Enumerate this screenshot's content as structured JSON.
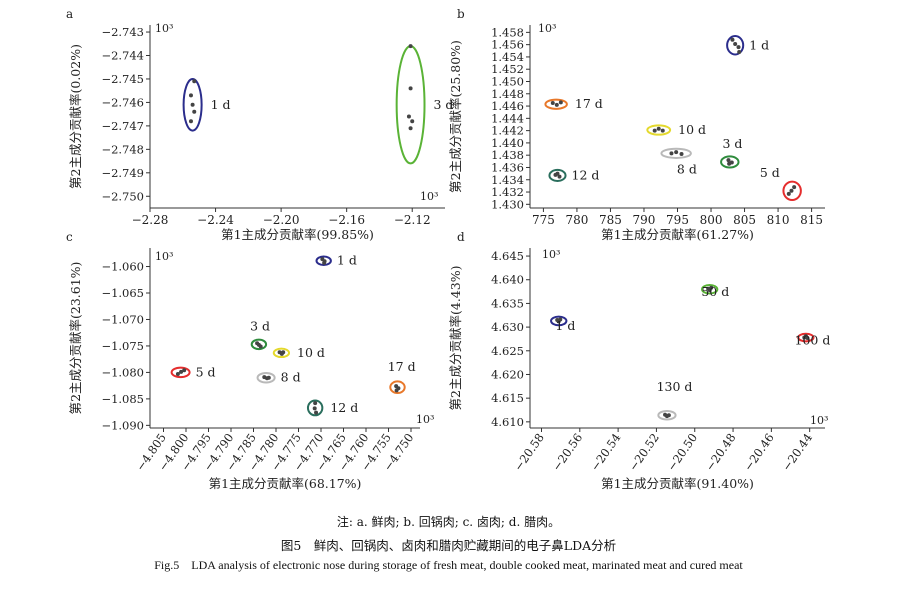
{
  "chart_data": [
    {
      "type": "scatter",
      "panel": "a",
      "xlabel": "第1主成分贡献率(99.85%)",
      "ylabel": "第2主成分贡献率(0.02%)",
      "scale_label": "10³",
      "scale_label_2": "10³",
      "xlim": [
        -2.28,
        -2.1
      ],
      "ylim": [
        -2.7505,
        -2.7427
      ],
      "xticks": [
        -2.28,
        -2.24,
        -2.2,
        -2.16,
        -2.12
      ],
      "xtick_labels": [
        "−2.28",
        "−2.24",
        "−2.20",
        "−2.16",
        "−2.12"
      ],
      "yticks": [
        -2.743,
        -2.744,
        -2.745,
        -2.746,
        -2.747,
        -2.748,
        -2.749,
        -2.75
      ],
      "ytick_labels": [
        "−2.743",
        "−2.744",
        "−2.745",
        "−2.746",
        "−2.747",
        "−2.748",
        "−2.749",
        "−2.750"
      ],
      "grid": false,
      "groups": [
        {
          "label": "1 d",
          "color": "#2b2d8c",
          "center": [
            -2.254,
            -2.7461
          ],
          "rx": 0.0055,
          "ry": 0.0011,
          "points": [
            [
              -2.253,
              -2.7451
            ],
            [
              -2.255,
              -2.7457
            ],
            [
              -2.254,
              -2.7461
            ],
            [
              -2.253,
              -2.7464
            ],
            [
              -2.255,
              -2.7468
            ]
          ]
        },
        {
          "label": "3 d",
          "color": "#5ab336",
          "center": [
            -2.121,
            -2.7461
          ],
          "rx": 0.0085,
          "ry": 0.0025,
          "points": [
            [
              -2.121,
              -2.7436
            ],
            [
              -2.121,
              -2.7454
            ],
            [
              -2.122,
              -2.7466
            ],
            [
              -2.12,
              -2.7468
            ],
            [
              -2.121,
              -2.7471
            ]
          ]
        }
      ]
    },
    {
      "type": "scatter",
      "panel": "b",
      "xlabel": "第1主成分贡献率(61.27%)",
      "ylabel": "第2主成分贡献率(25.80%)",
      "scale_label": "10³",
      "xlim": [
        773,
        817
      ],
      "ylim": [
        1.4294,
        1.4592
      ],
      "xticks": [
        775,
        780,
        785,
        790,
        795,
        800,
        805,
        810,
        815
      ],
      "xtick_labels": [
        "775",
        "780",
        "785",
        "790",
        "795",
        "800",
        "805",
        "810",
        "815"
      ],
      "yticks": [
        1.43,
        1.432,
        1.434,
        1.436,
        1.438,
        1.44,
        1.442,
        1.444,
        1.446,
        1.448,
        1.45,
        1.452,
        1.454,
        1.456,
        1.458
      ],
      "ytick_labels": [
        "1.430",
        "1.432",
        "1.434",
        "1.436",
        "1.438",
        "1.440",
        "1.442",
        "1.444",
        "1.446",
        "1.448",
        "1.450",
        "1.452",
        "1.454",
        "1.456",
        "1.458"
      ],
      "grid": false,
      "groups": [
        {
          "label": "1 d",
          "color": "#2b2d8c",
          "center": [
            803.6,
            1.4559
          ],
          "rx": 1.2,
          "ry": 0.0015,
          "points": [
            [
              803.2,
              1.4568
            ],
            [
              803.6,
              1.4561
            ],
            [
              804.1,
              1.4556
            ],
            [
              804.2,
              1.4548
            ]
          ]
        },
        {
          "label": "17 d",
          "color": "#e8782a",
          "center": [
            776.9,
            1.4463
          ],
          "rx": 1.6,
          "ry": 0.00075,
          "points": [
            [
              776.4,
              1.4465
            ],
            [
              777.0,
              1.4462
            ],
            [
              777.6,
              1.4466
            ]
          ]
        },
        {
          "label": "10 d",
          "color": "#e4d92d",
          "center": [
            792.2,
            1.4421
          ],
          "rx": 1.7,
          "ry": 0.00075,
          "points": [
            [
              791.6,
              1.442
            ],
            [
              792.2,
              1.4423
            ],
            [
              792.8,
              1.442
            ]
          ]
        },
        {
          "label": "8 d",
          "color": "#b9b9b9",
          "center": [
            794.8,
            1.4383
          ],
          "rx": 2.2,
          "ry": 0.00075,
          "points": [
            [
              794.1,
              1.4383
            ],
            [
              794.8,
              1.4385
            ],
            [
              795.6,
              1.4382
            ]
          ]
        },
        {
          "label": "3 d",
          "color": "#2e8b3c",
          "center": [
            802.8,
            1.4369
          ],
          "rx": 1.3,
          "ry": 0.0009,
          "points": [
            [
              802.6,
              1.4372
            ],
            [
              803.1,
              1.4368
            ],
            [
              802.7,
              1.4366
            ]
          ]
        },
        {
          "label": "12 d",
          "color": "#2a6e5d",
          "center": [
            777.1,
            1.4347
          ],
          "rx": 1.2,
          "ry": 0.0009,
          "points": [
            [
              776.8,
              1.4348
            ],
            [
              777.4,
              1.4345
            ],
            [
              777.1,
              1.435
            ]
          ]
        },
        {
          "label": "5 d",
          "color": "#e52d2d",
          "center": [
            812.1,
            1.4322
          ],
          "rx": 1.3,
          "ry": 0.0015,
          "points": [
            [
              812.4,
              1.4328
            ],
            [
              812.0,
              1.4322
            ],
            [
              811.6,
              1.4317
            ]
          ]
        }
      ]
    },
    {
      "type": "scatter",
      "panel": "c",
      "xlabel": "第1主成分贡献率(68.17%)",
      "ylabel": "第2主成分贡献率(23.61%)",
      "scale_label": "10³",
      "scale_label_2": "10³",
      "xlim": [
        -4.808,
        -4.748
      ],
      "ylim": [
        -1.0905,
        -1.0565
      ],
      "xticks": [
        -4.805,
        -4.8,
        -4.795,
        -4.79,
        -4.785,
        -4.78,
        -4.775,
        -4.77,
        -4.765,
        -4.76,
        -4.755,
        -4.75
      ],
      "xtick_labels": [
        "−4.805",
        "−4.800",
        "−4.795",
        "−4.790",
        "−4.785",
        "−4.780",
        "−4.775",
        "−4.770",
        "−4.765",
        "−4.760",
        "−4.755",
        "−4.750"
      ],
      "yticks": [
        -1.06,
        -1.065,
        -1.07,
        -1.075,
        -1.08,
        -1.085,
        -1.09
      ],
      "ytick_labels": [
        "−1.060",
        "−1.065",
        "−1.070",
        "−1.075",
        "−1.080",
        "−1.085",
        "−1.090"
      ],
      "grid": false,
      "groups": [
        {
          "label": "1 d",
          "color": "#2b2d8c",
          "center": [
            -4.7694,
            -1.0589
          ],
          "rx": 0.0016,
          "ry": 0.0008,
          "points": [
            [
              -4.7697,
              -1.0586
            ],
            [
              -4.7692,
              -1.059
            ],
            [
              -4.7693,
              -1.0593
            ]
          ]
        },
        {
          "label": "3 d",
          "color": "#2e8b3c",
          "center": [
            -4.7838,
            -1.0747
          ],
          "rx": 0.0016,
          "ry": 0.0009,
          "points": [
            [
              -4.7842,
              -1.0745
            ],
            [
              -4.7838,
              -1.0748
            ],
            [
              -4.7834,
              -1.0751
            ]
          ]
        },
        {
          "label": "10 d",
          "color": "#e4d92d",
          "center": [
            -4.7788,
            -1.0763
          ],
          "rx": 0.0017,
          "ry": 0.0008,
          "points": [
            [
              -4.7792,
              -1.0762
            ],
            [
              -4.7787,
              -1.0765
            ],
            [
              -4.7784,
              -1.0762
            ]
          ]
        },
        {
          "label": "5 d",
          "color": "#e52d2d",
          "center": [
            -4.8012,
            -1.08
          ],
          "rx": 0.002,
          "ry": 0.0009,
          "points": [
            [
              -4.8018,
              -1.0803
            ],
            [
              -4.8011,
              -1.0799
            ],
            [
              -4.8004,
              -1.0796
            ]
          ]
        },
        {
          "label": "8 d",
          "color": "#b9b9b9",
          "center": [
            -4.7822,
            -1.081
          ],
          "rx": 0.0019,
          "ry": 0.0009,
          "points": [
            [
              -4.7826,
              -1.0809
            ],
            [
              -4.782,
              -1.0811
            ],
            [
              -4.7816,
              -1.081
            ]
          ]
        },
        {
          "label": "17 d",
          "color": "#e8782a",
          "center": [
            -4.753,
            -1.0828
          ],
          "rx": 0.0016,
          "ry": 0.0011,
          "points": [
            [
              -4.7533,
              -1.0826
            ],
            [
              -4.7528,
              -1.083
            ],
            [
              -4.7532,
              -1.0834
            ]
          ]
        },
        {
          "label": "12 d",
          "color": "#2a6e5d",
          "center": [
            -4.7713,
            -1.0867
          ],
          "rx": 0.0016,
          "ry": 0.0014,
          "points": [
            [
              -4.7713,
              -1.0858
            ],
            [
              -4.7714,
              -1.0868
            ],
            [
              -4.7711,
              -1.0876
            ]
          ]
        }
      ]
    },
    {
      "type": "scatter",
      "panel": "d",
      "xlabel": "第1主成分贡献率(91.40%)",
      "ylabel": "第2主成分贡献率(4.43%)",
      "scale_label": "10³",
      "scale_label_2": "10³",
      "xlim": [
        -20.586,
        -20.432
      ],
      "ylim": [
        4.6087,
        4.6467
      ],
      "xticks": [
        -20.58,
        -20.56,
        -20.54,
        -20.52,
        -20.5,
        -20.48,
        -20.46,
        -20.44
      ],
      "xtick_labels": [
        "−20.58",
        "−20.56",
        "−20.54",
        "−20.52",
        "−20.50",
        "−20.48",
        "−20.46",
        "−20.44"
      ],
      "yticks": [
        4.61,
        4.615,
        4.62,
        4.625,
        4.63,
        4.635,
        4.64,
        4.645
      ],
      "ytick_labels": [
        "4.610",
        "4.615",
        "4.620",
        "4.625",
        "4.630",
        "4.635",
        "4.640",
        "4.645"
      ],
      "grid": false,
      "groups": [
        {
          "label": "1 d",
          "color": "#2b2d8c",
          "center": [
            -20.571,
            4.6313
          ],
          "rx": 0.004,
          "ry": 0.0009,
          "points": [
            [
              -20.5718,
              4.6315
            ],
            [
              -20.571,
              4.6312
            ],
            [
              -20.5702,
              4.6316
            ]
          ]
        },
        {
          "label": "50 d",
          "color": "#5ab336",
          "center": [
            -20.4922,
            4.638
          ],
          "rx": 0.004,
          "ry": 0.0009,
          "points": [
            [
              -20.493,
              4.6381
            ],
            [
              -20.4922,
              4.6378
            ],
            [
              -20.4914,
              4.6383
            ]
          ]
        },
        {
          "label": "100 d",
          "color": "#e52d2d",
          "center": [
            -20.442,
            4.6278
          ],
          "rx": 0.004,
          "ry": 0.0008,
          "points": [
            [
              -20.4428,
              4.6278
            ],
            [
              -20.442,
              4.6281
            ],
            [
              -20.4412,
              4.6277
            ]
          ]
        },
        {
          "label": "130 d",
          "color": "#b9b9b9",
          "center": [
            -20.5145,
            4.6114
          ],
          "rx": 0.0045,
          "ry": 0.0009,
          "points": [
            [
              -20.5155,
              4.6115
            ],
            [
              -20.5145,
              4.6112
            ],
            [
              -20.5135,
              4.6114
            ]
          ]
        }
      ]
    }
  ],
  "caption": {
    "note": "注: a. 鲜肉; b. 回锅肉; c. 卤肉; d. 腊肉。",
    "title_cn": "图5　鲜肉、回锅肉、卤肉和腊肉贮藏期间的电子鼻LDA分析",
    "title_en": "Fig.5　LDA analysis of electronic nose during storage of fresh meat, double cooked meat, marinated meat and cured meat"
  }
}
